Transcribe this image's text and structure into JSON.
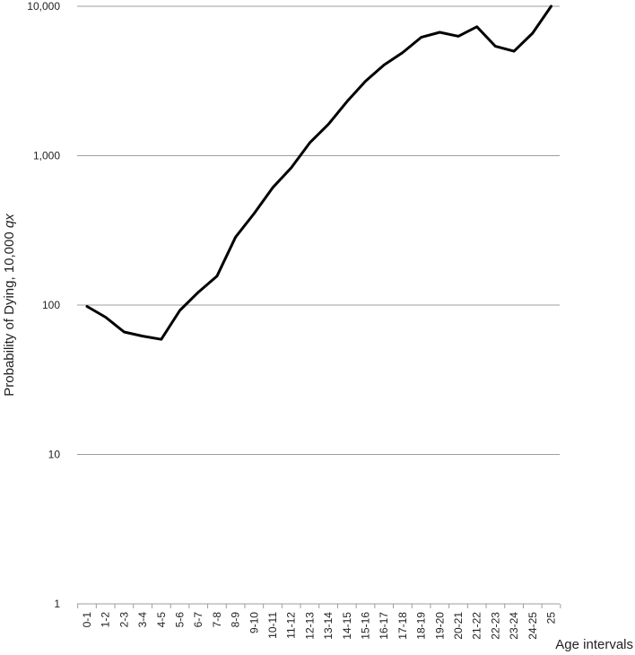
{
  "chart_data": {
    "type": "line",
    "title": "",
    "xlabel": "Age intervals",
    "ylabel": "Probability of Dying, 10,000 ",
    "ylabel_italic": "qx",
    "yscale": "log",
    "ylim": [
      1,
      10000
    ],
    "yticks": [
      {
        "value": 1,
        "label": "1"
      },
      {
        "value": 10,
        "label": "10"
      },
      {
        "value": 100,
        "label": "100"
      },
      {
        "value": 1000,
        "label": "1,000"
      },
      {
        "value": 10000,
        "label": "10,000"
      }
    ],
    "grid": true,
    "legend": "none",
    "line_color": "#000000",
    "grid_color": "#9e9e9e",
    "categories": [
      "0-1",
      "1-2",
      "2-3",
      "3-4",
      "4-5",
      "5-6",
      "6-7",
      "7-8",
      "8-9",
      "9-10",
      "10-11",
      "11-12",
      "12-13",
      "13-14",
      "14-15",
      "15-16",
      "16-17",
      "17-18",
      "18-19",
      "19-20",
      "20-21",
      "21-22",
      "22-23",
      "23-24",
      "24-25",
      "25"
    ],
    "series": [
      {
        "values": [
          98,
          83,
          66,
          62,
          59,
          92,
          122,
          156,
          285,
          410,
          610,
          830,
          1220,
          1620,
          2300,
          3150,
          4050,
          4900,
          6200,
          6700,
          6300,
          7300,
          5400,
          5000,
          6600,
          10000
        ]
      }
    ]
  }
}
